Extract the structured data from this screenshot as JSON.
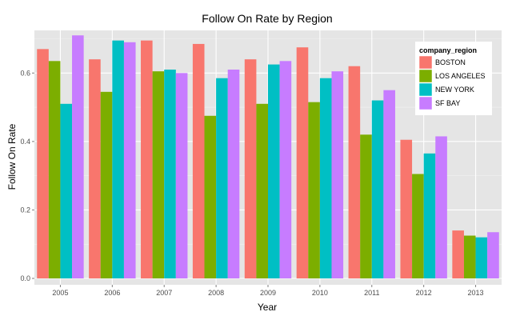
{
  "chart_data": {
    "type": "bar",
    "title": "Follow On Rate by Region",
    "xlabel": "Year",
    "ylabel": "Follow On Rate",
    "categories": [
      "2005",
      "2006",
      "2007",
      "2008",
      "2009",
      "2010",
      "2011",
      "2012",
      "2013"
    ],
    "ylim": [
      0,
      0.74
    ],
    "yticks": [
      "0.0",
      "0.2",
      "0.4",
      "0.6"
    ],
    "grid": true,
    "legend": {
      "title": "company_region",
      "position": "top-right"
    },
    "series": [
      {
        "name": "BOSTON",
        "color": "#F8766D",
        "values": [
          0.67,
          0.64,
          0.695,
          0.685,
          0.64,
          0.675,
          0.62,
          0.405,
          0.14
        ]
      },
      {
        "name": "LOS ANGELES",
        "color": "#7CAE00",
        "values": [
          0.635,
          0.545,
          0.605,
          0.475,
          0.51,
          0.515,
          0.42,
          0.305,
          0.125
        ]
      },
      {
        "name": "NEW YORK",
        "color": "#00BFC4",
        "values": [
          0.51,
          0.695,
          0.61,
          0.585,
          0.625,
          0.585,
          0.52,
          0.365,
          0.12
        ]
      },
      {
        "name": "SF BAY",
        "color": "#C77CFF",
        "values": [
          0.71,
          0.69,
          0.6,
          0.61,
          0.635,
          0.605,
          0.55,
          0.415,
          0.135
        ]
      }
    ]
  }
}
